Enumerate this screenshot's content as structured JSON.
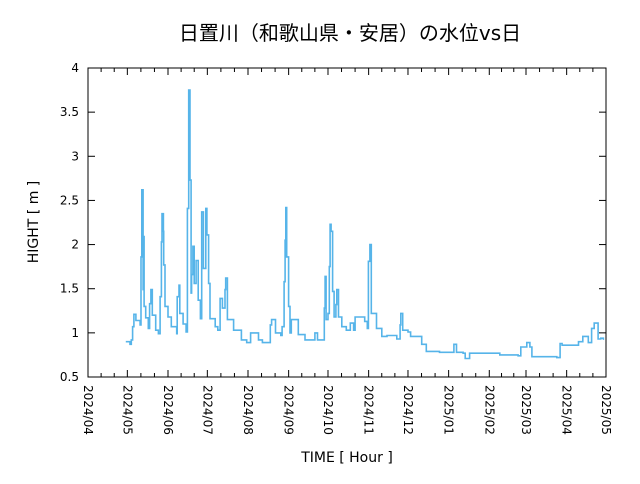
{
  "chart_data": {
    "type": "line",
    "title": "日置川（和歌山県・安居）の水位vs日",
    "xlabel": "TIME [ Hour ]",
    "ylabel": "HIGHT [ m ]",
    "ylim": [
      0.5,
      4
    ],
    "yticks": [
      "0.5",
      "1",
      "1.5",
      "2",
      "2.5",
      "3",
      "3.5",
      "4"
    ],
    "x_unit": "days since 2024/04/01",
    "xlim": [
      0,
      395
    ],
    "xticks": [
      {
        "label": "2024/04",
        "x": 0
      },
      {
        "label": "2024/05",
        "x": 30
      },
      {
        "label": "2024/06",
        "x": 61
      },
      {
        "label": "2024/07",
        "x": 91
      },
      {
        "label": "2024/08",
        "x": 122
      },
      {
        "label": "2024/09",
        "x": 153
      },
      {
        "label": "2024/10",
        "x": 183
      },
      {
        "label": "2024/11",
        "x": 214
      },
      {
        "label": "2024/12",
        "x": 244
      },
      {
        "label": "2025/01",
        "x": 275
      },
      {
        "label": "2025/02",
        "x": 306
      },
      {
        "label": "2025/03",
        "x": 334
      },
      {
        "label": "2025/04",
        "x": 365
      },
      {
        "label": "2025/05",
        "x": 395
      }
    ],
    "grid": false,
    "color": "#56b4e9",
    "series": [
      {
        "name": "水位",
        "points": [
          [
            28.8,
            0.9
          ],
          [
            32,
            0.87
          ],
          [
            33,
            0.92
          ],
          [
            34,
            1.07
          ],
          [
            35,
            1.21
          ],
          [
            36.5,
            1.14
          ],
          [
            39.7,
            1.09
          ],
          [
            40.4,
            1.86
          ],
          [
            41,
            2.62
          ],
          [
            42,
            1.49
          ],
          [
            42.2,
            2.09
          ],
          [
            42.8,
            1.3
          ],
          [
            44,
            1.17
          ],
          [
            46,
            1.05
          ],
          [
            47,
            1.33
          ],
          [
            48,
            1.49
          ],
          [
            49,
            1.2
          ],
          [
            51.6,
            1.03
          ],
          [
            53.7,
            0.99
          ],
          [
            55,
            1.41
          ],
          [
            56,
            2.03
          ],
          [
            56.4,
            2.35
          ],
          [
            57.5,
            2.15
          ],
          [
            57.7,
            1.77
          ],
          [
            58.7,
            1.3
          ],
          [
            61,
            1.18
          ],
          [
            63.5,
            1.07
          ],
          [
            67.6,
            0.99
          ],
          [
            68,
            1.41
          ],
          [
            69.4,
            1.54
          ],
          [
            70,
            1.22
          ],
          [
            72.5,
            1.1
          ],
          [
            74.8,
            1.01
          ],
          [
            75.8,
            2.41
          ],
          [
            76.8,
            3.75
          ],
          [
            77.8,
            2.73
          ],
          [
            78.6,
            1.45
          ],
          [
            79,
            1.66
          ],
          [
            80,
            1.98
          ],
          [
            81,
            1.56
          ],
          [
            82.4,
            1.82
          ],
          [
            84,
            1.37
          ],
          [
            85.7,
            1.16
          ],
          [
            86.7,
            2.37
          ],
          [
            88,
            1.73
          ],
          [
            89.8,
            2.41
          ],
          [
            90.7,
            2.11
          ],
          [
            92,
            1.56
          ],
          [
            93,
            1.16
          ],
          [
            97,
            1.07
          ],
          [
            99,
            1.03
          ],
          [
            100.7,
            1.39
          ],
          [
            102.5,
            1.28
          ],
          [
            104.5,
            1.49
          ],
          [
            105,
            1.62
          ],
          [
            106.3,
            1.15
          ],
          [
            111,
            1.03
          ],
          [
            117,
            0.92
          ],
          [
            121,
            0.89
          ],
          [
            124,
            1.0
          ],
          [
            130,
            0.92
          ],
          [
            133,
            0.89
          ],
          [
            138,
            0.89
          ],
          [
            139,
            1.09
          ],
          [
            140,
            1.15
          ],
          [
            143,
            1.0
          ],
          [
            147,
            0.97
          ],
          [
            148,
            1.07
          ],
          [
            149.5,
            1.58
          ],
          [
            150.3,
            2.05
          ],
          [
            150.8,
            2.42
          ],
          [
            151.5,
            1.86
          ],
          [
            153,
            1.3
          ],
          [
            154,
            1.0
          ],
          [
            155,
            1.15
          ],
          [
            159,
            1.15
          ],
          [
            160.4,
            0.98
          ],
          [
            165.5,
            0.92
          ],
          [
            170.6,
            0.92
          ],
          [
            173,
            1.0
          ],
          [
            175,
            0.92
          ],
          [
            180,
            0.92
          ],
          [
            180.2,
            1.28
          ],
          [
            180.8,
            1.64
          ],
          [
            181.6,
            1.15
          ],
          [
            183,
            1.22
          ],
          [
            184,
            1.75
          ],
          [
            184.6,
            2.23
          ],
          [
            185.4,
            2.15
          ],
          [
            186.5,
            1.47
          ],
          [
            187.7,
            1.18
          ],
          [
            189,
            1.32
          ],
          [
            189.7,
            1.49
          ],
          [
            191,
            1.18
          ],
          [
            193.5,
            1.07
          ],
          [
            197,
            1.03
          ],
          [
            200,
            1.11
          ],
          [
            202.5,
            1.03
          ],
          [
            203.7,
            1.18
          ],
          [
            211,
            1.13
          ],
          [
            213,
            1.05
          ],
          [
            213.8,
            1.81
          ],
          [
            215,
            2.0
          ],
          [
            216,
            1.22
          ],
          [
            220,
            1.05
          ],
          [
            224,
            0.96
          ],
          [
            228,
            0.97
          ],
          [
            235.5,
            0.93
          ],
          [
            238,
            1.09
          ],
          [
            238.5,
            1.22
          ],
          [
            240,
            1.03
          ],
          [
            244,
            1.01
          ],
          [
            246,
            0.96
          ],
          [
            254.5,
            0.87
          ],
          [
            258,
            0.79
          ],
          [
            268,
            0.78
          ],
          [
            277,
            0.78
          ],
          [
            279,
            0.87
          ],
          [
            281,
            0.78
          ],
          [
            286,
            0.77
          ],
          [
            287.6,
            0.71
          ],
          [
            291,
            0.77
          ],
          [
            314,
            0.75
          ],
          [
            328,
            0.74
          ],
          [
            330,
            0.84
          ],
          [
            334.6,
            0.89
          ],
          [
            337,
            0.84
          ],
          [
            338.5,
            0.73
          ],
          [
            357.5,
            0.72
          ],
          [
            360,
            0.88
          ],
          [
            361.5,
            0.86
          ],
          [
            374,
            0.9
          ],
          [
            377.3,
            0.96
          ],
          [
            381.5,
            0.89
          ],
          [
            384,
            1.05
          ],
          [
            386,
            1.11
          ],
          [
            389,
            0.93
          ],
          [
            391,
            0.94
          ],
          [
            393,
            0.92
          ]
        ]
      }
    ]
  }
}
